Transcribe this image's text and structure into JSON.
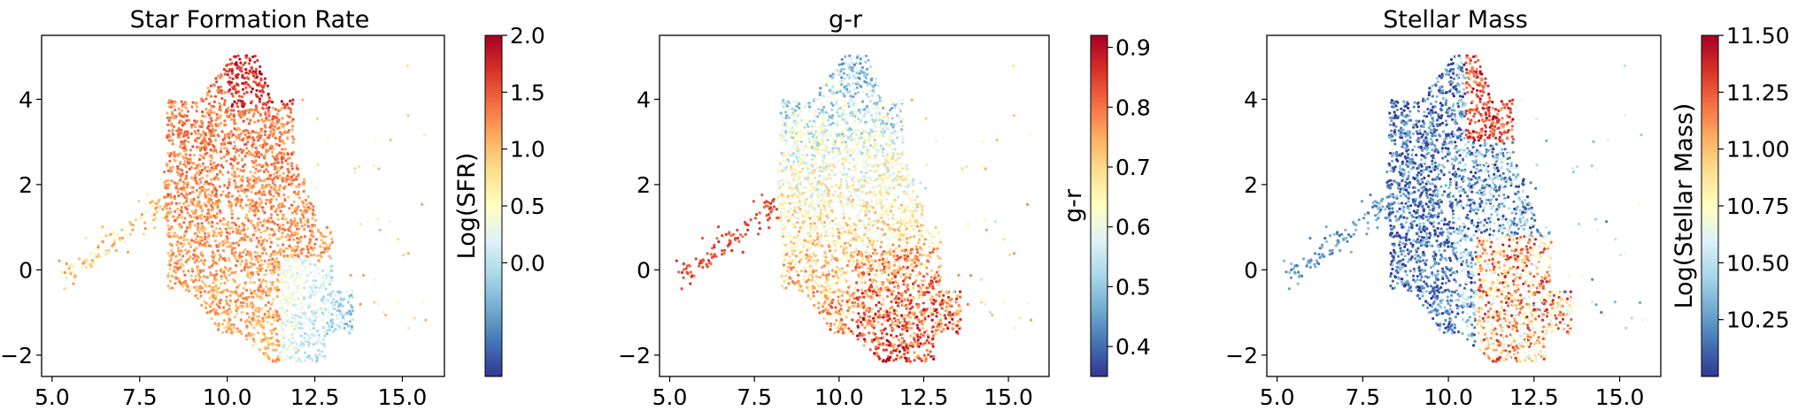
{
  "chart_data": [
    {
      "type": "scatter",
      "title": "Star Formation Rate",
      "xlim": [
        4.7,
        16.2
      ],
      "ylim": [
        -2.5,
        5.5
      ],
      "x_ticks": [
        "5.0",
        "7.5",
        "10.0",
        "12.5",
        "15.0"
      ],
      "y_ticks": [
        "−2",
        "0",
        "2",
        "4"
      ],
      "colorbar": {
        "label": "Log(SFR)",
        "range": [
          -1.0,
          2.0
        ],
        "ticks": [
          "0.0",
          "0.5",
          "1.0",
          "1.5",
          "2.0"
        ],
        "colormap": "RdYlBu_r"
      },
      "color_pattern": "sfr"
    },
    {
      "type": "scatter",
      "title": "g-r",
      "xlim": [
        4.7,
        16.2
      ],
      "ylim": [
        -2.5,
        5.5
      ],
      "x_ticks": [
        "5.0",
        "7.5",
        "10.0",
        "12.5",
        "15.0"
      ],
      "y_ticks": [
        "−2",
        "0",
        "2",
        "4"
      ],
      "colorbar": {
        "label": "g-r",
        "range": [
          0.35,
          0.92
        ],
        "ticks": [
          "0.4",
          "0.5",
          "0.6",
          "0.7",
          "0.8",
          "0.9"
        ],
        "colormap": "RdYlBu_r"
      },
      "color_pattern": "gr"
    },
    {
      "type": "scatter",
      "title": "Stellar Mass",
      "xlim": [
        4.7,
        16.2
      ],
      "ylim": [
        -2.5,
        5.5
      ],
      "x_ticks": [
        "5.0",
        "7.5",
        "10.0",
        "12.5",
        "15.0"
      ],
      "y_ticks": [
        "−2",
        "0",
        "2",
        "4"
      ],
      "colorbar": {
        "label": "Log(Stellar Mass)",
        "range": [
          10.0,
          11.5
        ],
        "ticks": [
          "10.25",
          "10.50",
          "10.75",
          "11.00",
          "11.25",
          "11.50"
        ],
        "colormap": "RdYlBu_r"
      },
      "color_pattern": "mass"
    }
  ],
  "colors": {
    "colormap_stops": [
      "#313695",
      "#4575b4",
      "#74add1",
      "#abd9e9",
      "#e0f3f8",
      "#ffffbf",
      "#fee090",
      "#fdae61",
      "#f46d43",
      "#d73027",
      "#a50026"
    ]
  }
}
